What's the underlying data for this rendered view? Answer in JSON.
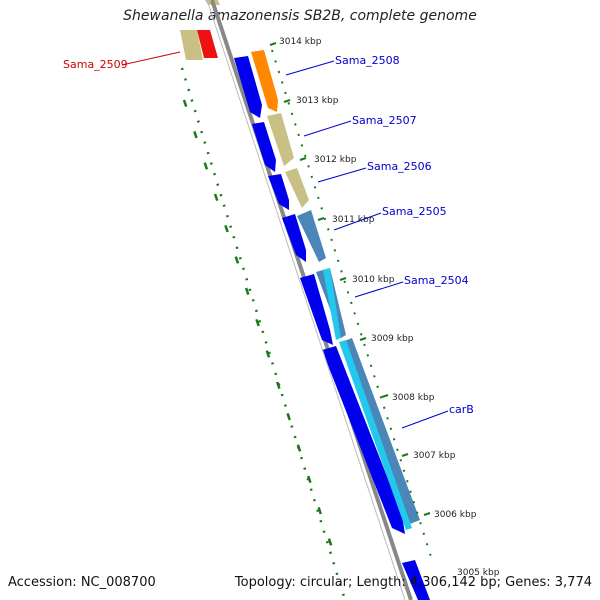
{
  "title": "Shewanella amazonensis SB2B, complete genome",
  "footer": {
    "accession": "Accession: NC_008700",
    "summary": "Topology: circular; Length: 4,306,142 bp; Genes: 3,774"
  },
  "ticks": [
    "3014 kbp",
    "3013 kbp",
    "3012 kbp",
    "3011 kbp",
    "3010 kbp",
    "3009 kbp",
    "3008 kbp",
    "3007 kbp",
    "3006 kbp",
    "3005 kbp"
  ],
  "gene_labels": [
    {
      "name": "Sama_2509",
      "color": "#cc0000"
    },
    {
      "name": "Sama_2508",
      "color": "#0000cc"
    },
    {
      "name": "Sama_2507",
      "color": "#0000cc"
    },
    {
      "name": "Sama_2506",
      "color": "#0000cc"
    },
    {
      "name": "Sama_2505",
      "color": "#0000cc"
    },
    {
      "name": "Sama_2504",
      "color": "#0000cc"
    },
    {
      "name": "carB",
      "color": "#0000cc"
    }
  ],
  "colors": {
    "cds_strand": "#0000ee",
    "khaki": "#c8c084",
    "orange": "#ff8800",
    "red": "#ee1111",
    "steelblue": "#4a86b8",
    "cyan": "#22c8ee",
    "backbone": "#888888",
    "gc_dots": "#1a7a1a",
    "label_line_blue": "#0000cc",
    "label_line_red": "#cc0000"
  }
}
